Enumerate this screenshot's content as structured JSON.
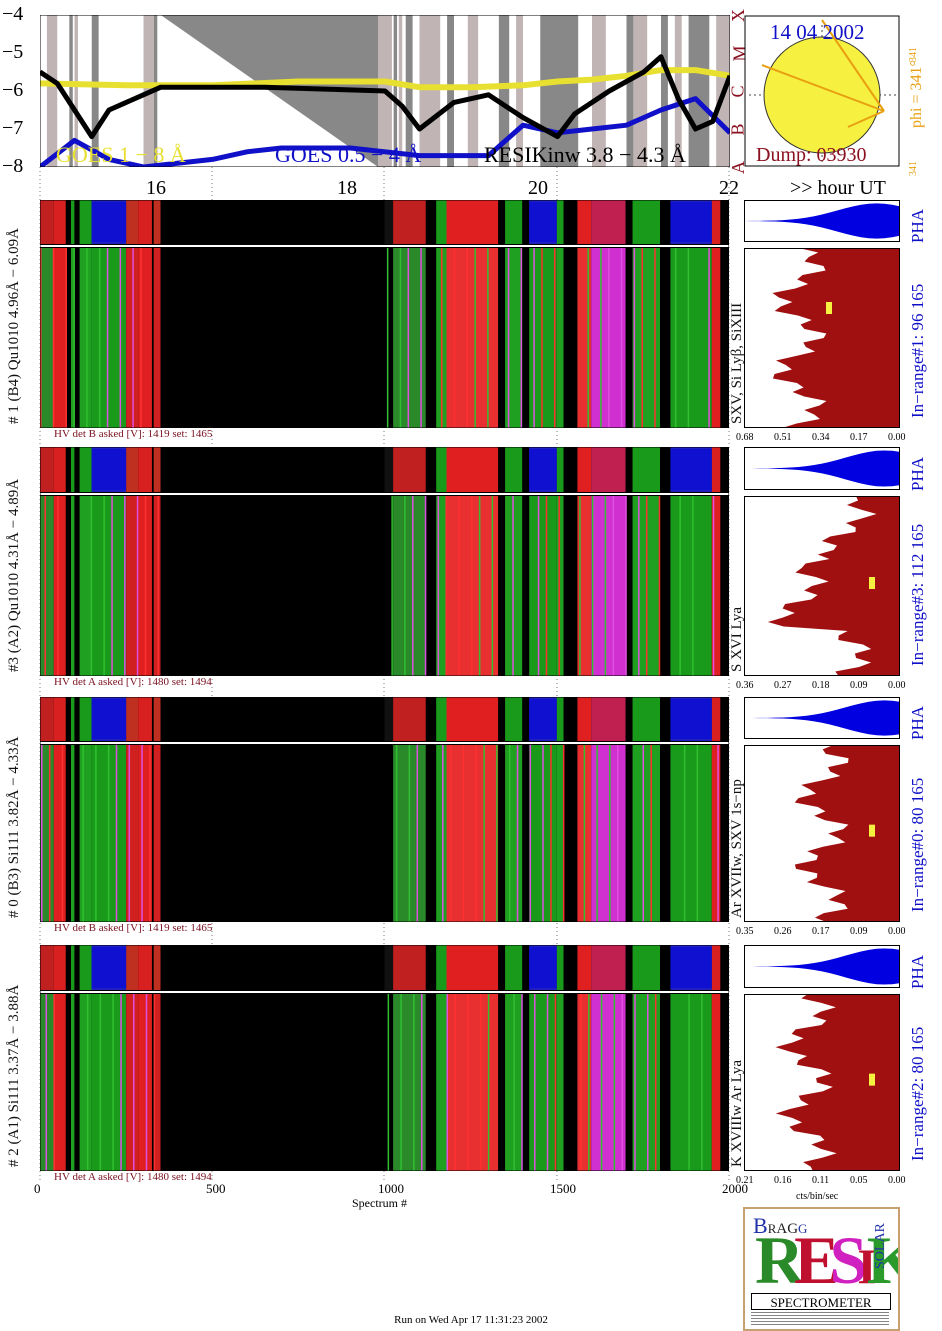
{
  "colors": {
    "goes_long": "#e8e030",
    "goes_short": "#1010c8",
    "resik": "#000000",
    "maroon": "#8b1020",
    "pha_blue": "#0000e0",
    "sun_yellow": "#f6f040",
    "orange": "#e8a010"
  },
  "goes": {
    "y_ticks": [
      "−4",
      "−5",
      "−6",
      "−7",
      "−8"
    ],
    "flare_classes": [
      "X",
      "M",
      "C",
      "B",
      "A"
    ],
    "legend_long": "GOES 1 − 8 Å",
    "legend_short": "GOES 0.5 − 4 Å",
    "legend_resik": "RESIKinw 3.8 − 4.3 Å"
  },
  "sun": {
    "date": "14 04 2002",
    "dump": "Dump: 03930",
    "phi": "phi = 341°",
    "phi_top": "341",
    "phi_bottom": "341"
  },
  "hour_axis": {
    "ticks": [
      "16",
      "18",
      "20",
      "22"
    ],
    "unit_label": ">> hour UT"
  },
  "panels": [
    {
      "id": "p1",
      "label": "# 1 (B4) Qu1010 4.96Å − 6.09Å",
      "lines": "SXV, Si Lyβ, SiXIII",
      "hv": "HV det B asked [V]:  1419 set:  1465",
      "range": "In−range#1:   96 165",
      "pha_label": "PHA",
      "ticks": [
        "0.68",
        "0.51",
        "0.34",
        "0.17",
        "0.00"
      ]
    },
    {
      "id": "p3",
      "label": "#3 (A2) Qu1010  4.31Å − 4.89Å",
      "lines": "S XVI Lya",
      "hv": "HV det A asked [V]:  1480 set:  1494",
      "range": "In−range#3:   112 165",
      "pha_label": "PHA",
      "ticks": [
        "0.36",
        "0.27",
        "0.18",
        "0.09",
        "0.00"
      ]
    },
    {
      "id": "p0",
      "label": "# 0 (B3) Si111  3.82Å − 4.33Å",
      "lines": "Ar XVIIw,  SXV  1s−np",
      "hv": "HV det B asked [V]:  1419 set:  1465",
      "range": "In−range#0:   80 165",
      "pha_label": "PHA",
      "ticks": [
        "0.35",
        "0.26",
        "0.17",
        "0.09",
        "0.00"
      ]
    },
    {
      "id": "p2",
      "label": "# 2 (A1) Si111  3.37Å − 3.88Å",
      "lines": "K XVIIIw  Ar Lya",
      "hv": "HV det A asked [V]:  1480 set:  1494",
      "range": "In−range#2:   80 165",
      "pha_label": "PHA",
      "ticks": [
        "0.21",
        "0.16",
        "0.11",
        "0.05",
        "0.00"
      ]
    }
  ],
  "bottom_axis": {
    "ticks": [
      "0",
      "500",
      "1000",
      "1500",
      "2000"
    ],
    "label": "Spectrum #",
    "profile_unit": "cts/bin/sec"
  },
  "logo": {
    "letters": "RESIK",
    "word": "SPECTROMETER",
    "bragg": "BRAGG",
    "solar": "SOLAR"
  },
  "footer": "Run on Wed Apr 17 11:31:23 2002",
  "chart_data": {
    "type": "line",
    "title": "",
    "xlabel": "Spectrum #",
    "ylabel": "",
    "xlim": [
      0,
      2000
    ],
    "ylim": [
      -8,
      -4
    ],
    "y_scale": "log10 flux",
    "series": [
      {
        "name": "GOES 1 − 8 Å",
        "x": [
          0,
          250,
          500,
          750,
          1000,
          1100,
          1250,
          1400,
          1500,
          1600,
          1700,
          1800,
          1900,
          2000
        ],
        "values": [
          -5.8,
          -5.85,
          -5.85,
          -5.75,
          -5.75,
          -5.9,
          -5.9,
          -5.85,
          -5.75,
          -5.7,
          -5.6,
          -5.45,
          -5.45,
          -5.6
        ]
      },
      {
        "name": "GOES 0.5 − 4 Å",
        "x": [
          0,
          100,
          200,
          300,
          500,
          600,
          700,
          900,
          1100,
          1300,
          1400,
          1500,
          1600,
          1700,
          1800,
          1900,
          2000
        ],
        "values": [
          -8.0,
          -7.3,
          -7.8,
          -8.0,
          -7.8,
          -7.6,
          -7.5,
          -7.5,
          -7.7,
          -7.7,
          -6.9,
          -7.1,
          -7.0,
          -6.9,
          -6.5,
          -6.2,
          -7.1
        ]
      },
      {
        "name": "RESIKinw 3.8 − 4.3 Å",
        "x": [
          0,
          50,
          100,
          150,
          200,
          350,
          650,
          1000,
          1050,
          1100,
          1200,
          1300,
          1400,
          1500,
          1550,
          1650,
          1750,
          1800,
          1850,
          1900,
          1950,
          2000
        ],
        "values": [
          -5.5,
          -5.8,
          -6.5,
          -7.2,
          -6.5,
          -5.9,
          -5.9,
          -6.0,
          -6.4,
          -7.0,
          -6.3,
          -6.1,
          -6.7,
          -7.2,
          -6.6,
          -6.0,
          -5.5,
          -5.1,
          -6.2,
          -7.0,
          -6.8,
          -5.6
        ]
      }
    ]
  }
}
